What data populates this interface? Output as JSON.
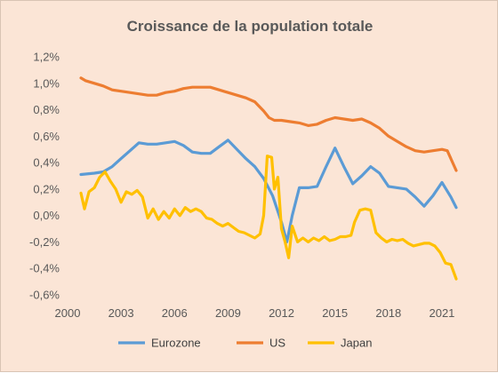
{
  "chart_data": {
    "type": "line",
    "title": "Croissance de la population  totale",
    "xlabel": "",
    "ylabel": "",
    "xlim": [
      2000,
      2022
    ],
    "ylim": [
      -0.6,
      1.2
    ],
    "x_ticks": [
      "2000",
      "2003",
      "2006",
      "2009",
      "2012",
      "2015",
      "2018",
      "2021"
    ],
    "y_ticks": [
      "1,2%",
      "1,0%",
      "0,8%",
      "0,6%",
      "0,4%",
      "0,2%",
      "0,0%",
      "-0,2%",
      "-0,4%",
      "-0,6%"
    ],
    "grid": false,
    "legend_position": "bottom",
    "series": [
      {
        "name": "Eurozone",
        "color": "#5b9bd5",
        "points": [
          [
            2000.75,
            0.31
          ],
          [
            2001.5,
            0.32
          ],
          [
            2002.0,
            0.33
          ],
          [
            2002.5,
            0.37
          ],
          [
            2003.0,
            0.43
          ],
          [
            2003.5,
            0.49
          ],
          [
            2004.0,
            0.55
          ],
          [
            2004.5,
            0.54
          ],
          [
            2005.0,
            0.54
          ],
          [
            2005.5,
            0.55
          ],
          [
            2006.0,
            0.56
          ],
          [
            2006.5,
            0.53
          ],
          [
            2007.0,
            0.48
          ],
          [
            2007.5,
            0.47
          ],
          [
            2008.0,
            0.47
          ],
          [
            2008.5,
            0.52
          ],
          [
            2009.0,
            0.57
          ],
          [
            2009.5,
            0.5
          ],
          [
            2010.0,
            0.43
          ],
          [
            2010.5,
            0.37
          ],
          [
            2011.0,
            0.28
          ],
          [
            2011.5,
            0.15
          ],
          [
            2012.0,
            -0.05
          ],
          [
            2012.3,
            -0.2
          ],
          [
            2012.6,
            0.0
          ],
          [
            2013.0,
            0.21
          ],
          [
            2013.5,
            0.21
          ],
          [
            2014.0,
            0.22
          ],
          [
            2014.5,
            0.37
          ],
          [
            2015.0,
            0.51
          ],
          [
            2015.5,
            0.37
          ],
          [
            2016.0,
            0.24
          ],
          [
            2016.5,
            0.3
          ],
          [
            2017.0,
            0.37
          ],
          [
            2017.5,
            0.32
          ],
          [
            2018.0,
            0.22
          ],
          [
            2018.5,
            0.21
          ],
          [
            2019.0,
            0.2
          ],
          [
            2019.5,
            0.14
          ],
          [
            2020.0,
            0.07
          ],
          [
            2020.5,
            0.15
          ],
          [
            2021.0,
            0.25
          ],
          [
            2021.5,
            0.14
          ],
          [
            2021.8,
            0.06
          ]
        ]
      },
      {
        "name": "US",
        "color": "#ed7d31",
        "points": [
          [
            2000.75,
            1.04
          ],
          [
            2001.0,
            1.02
          ],
          [
            2001.5,
            1.0
          ],
          [
            2002.0,
            0.98
          ],
          [
            2002.5,
            0.95
          ],
          [
            2003.0,
            0.94
          ],
          [
            2003.5,
            0.93
          ],
          [
            2004.0,
            0.92
          ],
          [
            2004.5,
            0.91
          ],
          [
            2005.0,
            0.91
          ],
          [
            2005.5,
            0.93
          ],
          [
            2006.0,
            0.94
          ],
          [
            2006.5,
            0.96
          ],
          [
            2007.0,
            0.97
          ],
          [
            2007.5,
            0.97
          ],
          [
            2008.0,
            0.97
          ],
          [
            2008.5,
            0.95
          ],
          [
            2009.0,
            0.93
          ],
          [
            2009.5,
            0.91
          ],
          [
            2010.0,
            0.89
          ],
          [
            2010.5,
            0.86
          ],
          [
            2011.0,
            0.79
          ],
          [
            2011.3,
            0.74
          ],
          [
            2011.6,
            0.72
          ],
          [
            2012.0,
            0.72
          ],
          [
            2012.5,
            0.71
          ],
          [
            2013.0,
            0.7
          ],
          [
            2013.5,
            0.68
          ],
          [
            2014.0,
            0.69
          ],
          [
            2014.5,
            0.72
          ],
          [
            2015.0,
            0.74
          ],
          [
            2015.5,
            0.73
          ],
          [
            2016.0,
            0.72
          ],
          [
            2016.5,
            0.73
          ],
          [
            2017.0,
            0.7
          ],
          [
            2017.5,
            0.66
          ],
          [
            2018.0,
            0.6
          ],
          [
            2018.5,
            0.56
          ],
          [
            2019.0,
            0.52
          ],
          [
            2019.5,
            0.49
          ],
          [
            2020.0,
            0.48
          ],
          [
            2020.5,
            0.49
          ],
          [
            2021.0,
            0.5
          ],
          [
            2021.3,
            0.49
          ],
          [
            2021.6,
            0.4
          ],
          [
            2021.8,
            0.34
          ]
        ]
      },
      {
        "name": "Japan",
        "color": "#ffc000",
        "points": [
          [
            2000.75,
            0.17
          ],
          [
            2000.95,
            0.05
          ],
          [
            2001.2,
            0.18
          ],
          [
            2001.5,
            0.21
          ],
          [
            2001.8,
            0.29
          ],
          [
            2002.1,
            0.33
          ],
          [
            2002.4,
            0.26
          ],
          [
            2002.7,
            0.2
          ],
          [
            2003.0,
            0.1
          ],
          [
            2003.3,
            0.18
          ],
          [
            2003.6,
            0.16
          ],
          [
            2003.9,
            0.19
          ],
          [
            2004.2,
            0.14
          ],
          [
            2004.5,
            -0.02
          ],
          [
            2004.8,
            0.05
          ],
          [
            2005.1,
            -0.03
          ],
          [
            2005.4,
            0.03
          ],
          [
            2005.7,
            -0.02
          ],
          [
            2006.0,
            0.05
          ],
          [
            2006.3,
            0.0
          ],
          [
            2006.6,
            0.06
          ],
          [
            2006.9,
            0.03
          ],
          [
            2007.2,
            0.05
          ],
          [
            2007.5,
            0.03
          ],
          [
            2007.8,
            -0.02
          ],
          [
            2008.1,
            -0.03
          ],
          [
            2008.4,
            -0.06
          ],
          [
            2008.7,
            -0.08
          ],
          [
            2009.0,
            -0.06
          ],
          [
            2009.3,
            -0.09
          ],
          [
            2009.6,
            -0.12
          ],
          [
            2009.9,
            -0.13
          ],
          [
            2010.2,
            -0.15
          ],
          [
            2010.5,
            -0.17
          ],
          [
            2010.8,
            -0.14
          ],
          [
            2011.0,
            0.0
          ],
          [
            2011.2,
            0.45
          ],
          [
            2011.45,
            0.44
          ],
          [
            2011.6,
            0.2
          ],
          [
            2011.8,
            0.29
          ],
          [
            2012.0,
            -0.1
          ],
          [
            2012.2,
            -0.2
          ],
          [
            2012.4,
            -0.32
          ],
          [
            2012.6,
            -0.08
          ],
          [
            2012.9,
            -0.2
          ],
          [
            2013.2,
            -0.17
          ],
          [
            2013.5,
            -0.2
          ],
          [
            2013.8,
            -0.17
          ],
          [
            2014.1,
            -0.19
          ],
          [
            2014.4,
            -0.16
          ],
          [
            2014.7,
            -0.19
          ],
          [
            2015.0,
            -0.18
          ],
          [
            2015.3,
            -0.16
          ],
          [
            2015.6,
            -0.16
          ],
          [
            2015.9,
            -0.15
          ],
          [
            2016.1,
            -0.05
          ],
          [
            2016.4,
            0.04
          ],
          [
            2016.7,
            0.05
          ],
          [
            2017.0,
            0.04
          ],
          [
            2017.3,
            -0.13
          ],
          [
            2017.6,
            -0.17
          ],
          [
            2017.9,
            -0.2
          ],
          [
            2018.2,
            -0.18
          ],
          [
            2018.5,
            -0.19
          ],
          [
            2018.8,
            -0.18
          ],
          [
            2019.1,
            -0.21
          ],
          [
            2019.4,
            -0.23
          ],
          [
            2019.7,
            -0.22
          ],
          [
            2020.0,
            -0.21
          ],
          [
            2020.3,
            -0.21
          ],
          [
            2020.6,
            -0.23
          ],
          [
            2020.9,
            -0.28
          ],
          [
            2021.2,
            -0.36
          ],
          [
            2021.5,
            -0.37
          ],
          [
            2021.8,
            -0.48
          ]
        ]
      }
    ]
  }
}
